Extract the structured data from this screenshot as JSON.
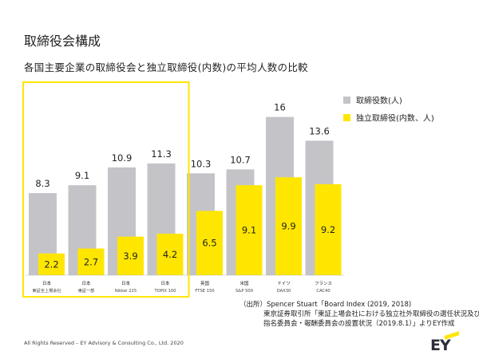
{
  "page": {
    "title": "取締役会構成",
    "subtitle": "各国主要企業の取締役会と独立取締役(内数)の平均人数の比較",
    "source_lines": [
      "（出所）Spencer Stuart「Board Index (2019, 2018)",
      "東京証券取引所「東証上場会社における独立社外取締役の選任状況及び",
      "指名委員会・報酬委員会の設置状況（2019.8.1）」よりEY作成"
    ],
    "footer": "All Rights Reserved – EY Advisory & Consulting Co., Ltd. 2020",
    "logo": "EY"
  },
  "chart_data": {
    "type": "bar",
    "title": "各国主要企業の取締役会と独立取締役(内数)の平均人数の比較",
    "categories": [
      {
        "country": "日本",
        "index": "東証全上場会社"
      },
      {
        "country": "日本",
        "index": "東証一部"
      },
      {
        "country": "日本",
        "index": "Nikkei 225"
      },
      {
        "country": "日本",
        "index": "TOPIX 100"
      },
      {
        "country": "英国",
        "index": "FTSE 150"
      },
      {
        "country": "米国",
        "index": "S&P 500"
      },
      {
        "country": "ドイツ",
        "index": "DAX30"
      },
      {
        "country": "フランス",
        "index": "CAC40"
      }
    ],
    "series": [
      {
        "name": "取締役数(人)",
        "color": "#c4c4c8",
        "values": [
          8.3,
          9.1,
          10.9,
          11.3,
          10.3,
          10.7,
          16,
          13.6
        ]
      },
      {
        "name": "独立取締役(内数、人)",
        "color": "#ffe600",
        "values": [
          2.2,
          2.7,
          3.9,
          4.2,
          6.5,
          9.1,
          9.9,
          9.2
        ]
      }
    ],
    "ylim": [
      0,
      16
    ],
    "highlight_group": [
      0,
      3
    ],
    "highlight_color": "#ffe600",
    "legend_position": "right"
  }
}
